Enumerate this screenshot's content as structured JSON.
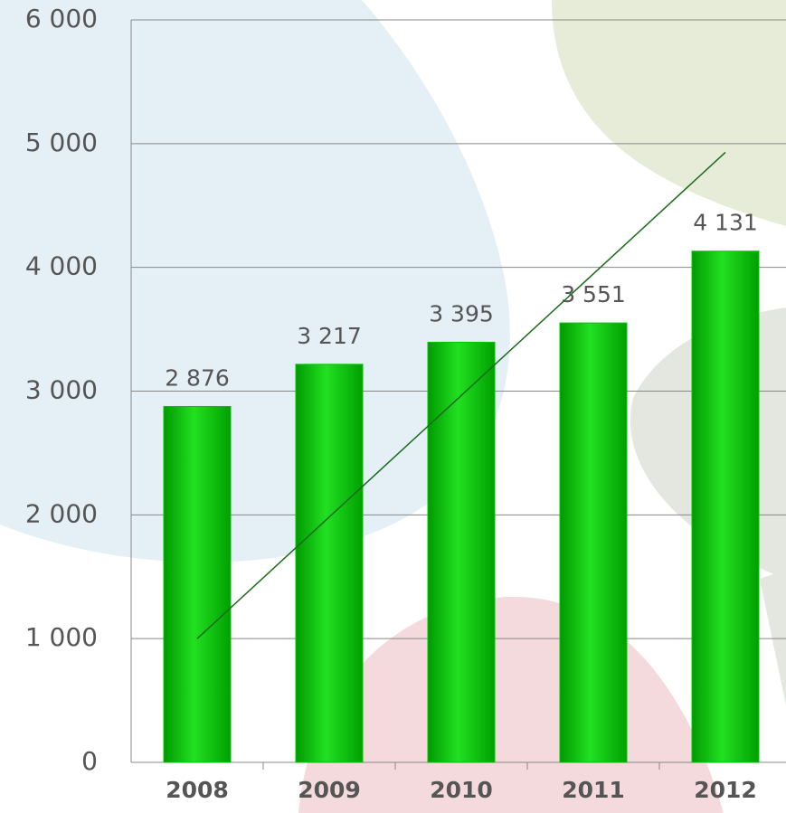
{
  "chart_data": {
    "type": "bar",
    "categories": [
      "2008",
      "2009",
      "2010",
      "2011",
      "2012"
    ],
    "values": [
      2876,
      3217,
      3395,
      3551,
      4131
    ],
    "value_labels": [
      "2 876",
      "3 217",
      "3 395",
      "3 551",
      "4 131"
    ],
    "color": "#00c800",
    "ylim": [
      0,
      6000
    ],
    "yticks": [
      0,
      {
        "value": 1000,
        "label": "1 000"
      },
      {
        "value": 2000,
        "label": "2 000"
      },
      {
        "value": 3000,
        "label": "3 000"
      },
      {
        "value": 4000,
        "label": "4 000"
      },
      {
        "value": 5000,
        "label": "5 000"
      },
      {
        "value": 6000,
        "label": "6 000"
      }
    ],
    "grid": true,
    "trend": {
      "color": "#1a6b1a",
      "values": [
        1000,
        4930
      ]
    }
  }
}
